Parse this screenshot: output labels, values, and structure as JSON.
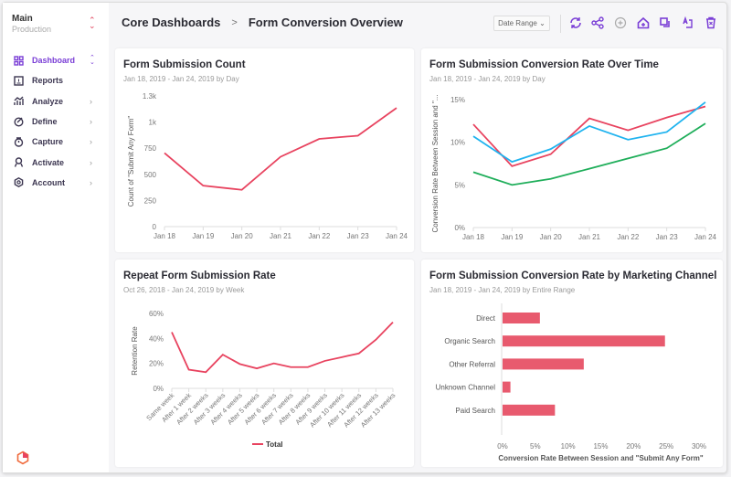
{
  "sidebar": {
    "project": "Main",
    "environment": "Production",
    "items": [
      {
        "label": "Dashboard",
        "icon": "grid-icon",
        "active": true
      },
      {
        "label": "Reports",
        "icon": "report-icon"
      },
      {
        "label": "Analyze",
        "icon": "analyze-icon"
      },
      {
        "label": "Define",
        "icon": "define-icon"
      },
      {
        "label": "Capture",
        "icon": "capture-icon"
      },
      {
        "label": "Activate",
        "icon": "activate-icon"
      },
      {
        "label": "Account",
        "icon": "gear-icon"
      }
    ]
  },
  "header": {
    "breadcrumb": [
      "Core Dashboards",
      "Form Conversion Overview"
    ],
    "separator": ">",
    "date_range": "Date Range"
  },
  "toolbar": [
    "refresh-icon",
    "share-icon",
    "add-icon",
    "home-icon",
    "duplicate-icon",
    "rename-icon",
    "trash-icon"
  ],
  "colors": {
    "accent": "#7a3ed6",
    "red": "#e8435f",
    "blue": "#1fb3ef",
    "green": "#1fae5a",
    "bar": "#e85a6e"
  },
  "chart_data": [
    {
      "type": "line",
      "title": "Form Submission Count",
      "subtitle": "Jan 18, 2019 - Jan 24, 2019 by Day",
      "ylabel": "Count of \"Submit Any Form\"",
      "categories": [
        "Jan 18",
        "Jan 19",
        "Jan 20",
        "Jan 21",
        "Jan 22",
        "Jan 23",
        "Jan 24"
      ],
      "yticks": [
        "0",
        "250",
        "500",
        "750",
        "1k",
        "1.3k"
      ],
      "ylim": [
        0,
        1250
      ],
      "series": [
        {
          "values": [
            704,
            392,
            352,
            668,
            839,
            870,
            1135
          ],
          "color": "#e8435f"
        }
      ]
    },
    {
      "type": "line",
      "title": "Form Submission Conversion Rate Over Time",
      "subtitle": "Jan 18, 2019 - Jan 24, 2019 by Day",
      "ylabel": "Conversion Rate Between Session and \"...",
      "categories": [
        "Jan 18",
        "Jan 19",
        "Jan 20",
        "Jan 21",
        "Jan 22",
        "Jan 23",
        "Jan 24"
      ],
      "yticks": [
        "0%",
        "5%",
        "10%",
        "15%"
      ],
      "ylim": [
        0,
        15
      ],
      "series": [
        {
          "values": [
            12.1,
            7.2,
            8.6,
            12.8,
            11.4,
            12.9,
            14.2
          ],
          "color": "#e8435f"
        },
        {
          "values": [
            10.7,
            7.7,
            9.2,
            11.9,
            10.3,
            11.2,
            14.7
          ],
          "color": "#1fb3ef"
        },
        {
          "values": [
            6.5,
            5.0,
            5.7,
            6.9,
            8.1,
            9.3,
            12.2
          ],
          "color": "#1fae5a"
        }
      ]
    },
    {
      "type": "line",
      "title": "Repeat Form Submission Rate",
      "subtitle": "Oct 26, 2018 - Jan 24, 2019 by Week",
      "ylabel": "Retention Rate",
      "categories": [
        "Same week",
        "After 1 week",
        "After 2 weeks",
        "After 3 weeks",
        "After 4 weeks",
        "After 5 weeks",
        "After 6 weeks",
        "After 7 weeks",
        "After 8 weeks",
        "After 9 weeks",
        "After 10 weeks",
        "After 11 weeks",
        "After 12 weeks",
        "After 13 weeks"
      ],
      "yticks": [
        "0%",
        "20%",
        "40%",
        "60%"
      ],
      "ylim": [
        0,
        60
      ],
      "legend": "bottom",
      "series": [
        {
          "name": "Total",
          "values": [
            45,
            15,
            13,
            27,
            19.5,
            16,
            20,
            17,
            17,
            22,
            25,
            28,
            39,
            53
          ],
          "color": "#e8435f"
        }
      ]
    },
    {
      "type": "bar",
      "orientation": "horizontal",
      "title": "Form Submission Conversion Rate by Marketing Channel",
      "subtitle": "Jan 18, 2019 - Jan 24, 2019 by Entire Range",
      "xlabel": "Conversion Rate Between Session and \"Submit Any Form\"",
      "categories": [
        "Direct",
        "Organic Search",
        "Other Referral",
        "Unknown Channel",
        "Paid Search"
      ],
      "values": [
        5.7,
        24.8,
        12.4,
        1.2,
        8.0
      ],
      "xticks": [
        "0%",
        "5%",
        "10%",
        "15%",
        "20%",
        "25%",
        "30%"
      ],
      "xlim": [
        0,
        30
      ],
      "color": "#e85a6e"
    }
  ]
}
